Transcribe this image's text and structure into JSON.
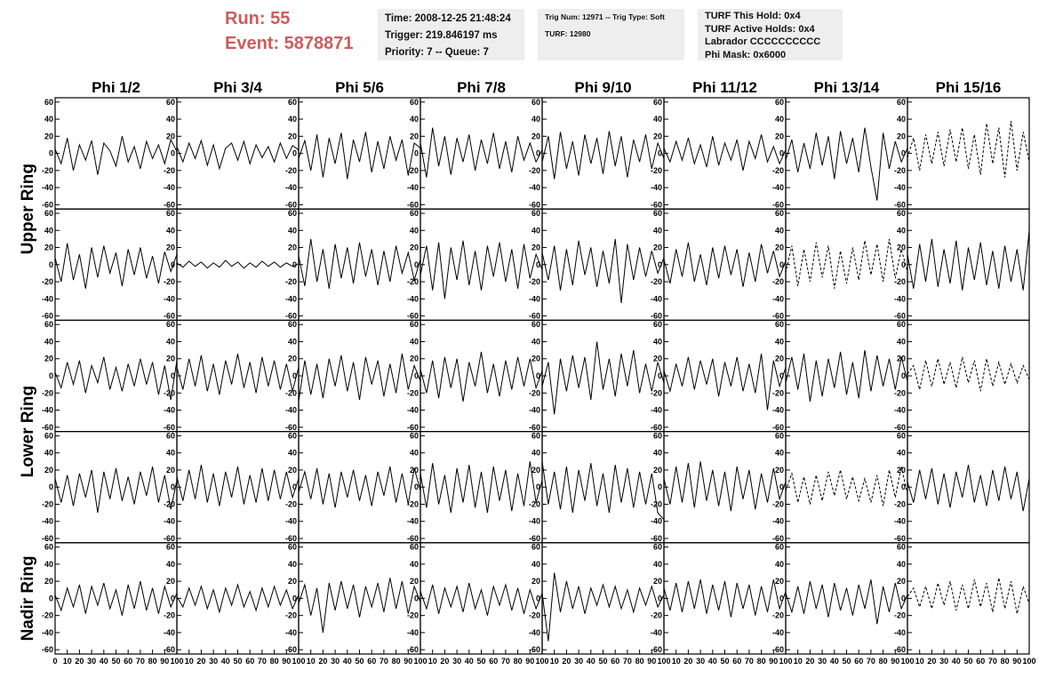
{
  "header": {
    "run": "Run:    55",
    "event": "Event: 5878871",
    "info_1": [
      "Time: 2008-12-25 21:48:24",
      "Trigger: 219.846197 ms",
      "Priority: 7 -- Queue: 7"
    ],
    "info_2": [
      "Trig Num: 12971 -- Trig Type: Soft",
      "TURF: 12980"
    ],
    "info_3": [
      "TURF This Hold: 0x4",
      "TURF Active Holds: 0x4",
      "Labrador CCCCCCCCCC",
      "Phi Mask: 0x6000"
    ]
  },
  "chart_data": {
    "type": "waveform-grid",
    "columns": [
      "Phi 1/2",
      "Phi 3/4",
      "Phi 5/6",
      "Phi 7/8",
      "Phi 9/10",
      "Phi 11/12",
      "Phi 13/14",
      "Phi 15/16"
    ],
    "row_groups": [
      "Upper Ring",
      "Lower Ring",
      "Nadir Ring"
    ],
    "xlim": [
      0,
      100
    ],
    "xticks": [
      0,
      10,
      20,
      30,
      40,
      50,
      60,
      70,
      80,
      90,
      100
    ],
    "ylim": [
      -65,
      65
    ],
    "yticks": [
      -60,
      -40,
      -20,
      0,
      20,
      40,
      60
    ],
    "x": [
      0,
      5,
      10,
      15,
      20,
      25,
      30,
      35,
      40,
      45,
      50,
      55,
      60,
      65,
      70,
      75,
      80,
      85,
      90,
      95,
      100
    ],
    "panels": [
      [
        {
          "line_style": "solid",
          "values": [
            5,
            -12,
            18,
            -20,
            10,
            -8,
            15,
            -25,
            12,
            3,
            -15,
            20,
            -10,
            8,
            -18,
            14,
            -6,
            10,
            -12,
            16,
            2
          ]
        },
        {
          "line_style": "solid",
          "values": [
            8,
            -10,
            12,
            -6,
            15,
            -14,
            10,
            -18,
            6,
            12,
            -8,
            14,
            -12,
            10,
            -5,
            8,
            -10,
            12,
            -6,
            9,
            4
          ]
        },
        {
          "line_style": "solid",
          "values": [
            -6,
            15,
            -20,
            22,
            -28,
            18,
            -12,
            24,
            -30,
            16,
            -10,
            25,
            -22,
            14,
            -18,
            20,
            -8,
            16,
            -26,
            12,
            6
          ]
        },
        {
          "line_style": "solid",
          "values": [
            12,
            -28,
            30,
            -15,
            20,
            -25,
            18,
            -10,
            22,
            -20,
            16,
            -12,
            24,
            -18,
            14,
            -22,
            20,
            -8,
            12,
            -10,
            4
          ]
        },
        {
          "line_style": "solid",
          "values": [
            -10,
            20,
            -30,
            25,
            -18,
            14,
            -26,
            22,
            -12,
            18,
            -24,
            26,
            -15,
            20,
            -28,
            16,
            -10,
            22,
            -18,
            12,
            -6
          ]
        },
        {
          "line_style": "solid",
          "values": [
            6,
            -10,
            14,
            -8,
            18,
            -12,
            10,
            -16,
            20,
            -14,
            12,
            -8,
            16,
            -20,
            14,
            -6,
            22,
            -10,
            8,
            -12,
            4
          ]
        },
        {
          "line_style": "solid",
          "values": [
            -8,
            16,
            -22,
            12,
            -18,
            24,
            -14,
            20,
            -30,
            26,
            -12,
            18,
            -22,
            30,
            -16,
            -55,
            24,
            -18,
            14,
            -10,
            6
          ]
        },
        {
          "line_style": "dashed",
          "values": [
            -5,
            18,
            -20,
            22,
            -12,
            25,
            -15,
            28,
            -10,
            30,
            -18,
            22,
            -25,
            35,
            -12,
            30,
            -28,
            38,
            -20,
            25,
            -10
          ]
        }
      ],
      [
        {
          "line_style": "solid",
          "values": [
            8,
            -20,
            25,
            -18,
            12,
            -28,
            20,
            -15,
            22,
            -10,
            14,
            -25,
            18,
            -12,
            20,
            -16,
            10,
            -22,
            15,
            -8,
            12
          ]
        },
        {
          "line_style": "solid",
          "values": [
            2,
            -3,
            4,
            -2,
            3,
            -4,
            2,
            -3,
            5,
            -2,
            3,
            -4,
            2,
            -3,
            4,
            -2,
            3,
            -3,
            2,
            -2,
            1
          ]
        },
        {
          "line_style": "solid",
          "values": [
            10,
            -25,
            30,
            -20,
            18,
            -28,
            24,
            -16,
            20,
            -22,
            26,
            -14,
            18,
            -24,
            16,
            -20,
            22,
            -10,
            14,
            -18,
            6
          ]
        },
        {
          "line_style": "solid",
          "values": [
            -12,
            22,
            -30,
            26,
            -40,
            20,
            -18,
            28,
            -24,
            16,
            -30,
            22,
            -14,
            26,
            -20,
            18,
            -28,
            24,
            -16,
            12,
            -6
          ]
        },
        {
          "line_style": "solid",
          "values": [
            14,
            -18,
            22,
            -30,
            18,
            -24,
            28,
            -12,
            20,
            -26,
            16,
            -22,
            30,
            -45,
            24,
            -18,
            20,
            -14,
            16,
            -10,
            8
          ]
        },
        {
          "line_style": "solid",
          "values": [
            6,
            -22,
            18,
            -14,
            26,
            -20,
            12,
            -24,
            20,
            -16,
            22,
            -12,
            18,
            -26,
            14,
            -20,
            24,
            -10,
            16,
            -14,
            4
          ]
        },
        {
          "line_style": "dashed",
          "values": [
            -10,
            22,
            -25,
            18,
            -20,
            26,
            -15,
            22,
            -28,
            16,
            -22,
            20,
            -18,
            28,
            -12,
            24,
            -20,
            30,
            -16,
            18,
            -8
          ]
        },
        {
          "line_style": "solid",
          "values": [
            12,
            -28,
            24,
            -20,
            30,
            -26,
            18,
            -22,
            28,
            -30,
            20,
            -18,
            26,
            -24,
            16,
            -28,
            22,
            -20,
            18,
            -30,
            40
          ]
        }
      ],
      [
        {
          "line_style": "solid",
          "values": [
            4,
            -14,
            16,
            -10,
            18,
            -20,
            12,
            -8,
            22,
            -16,
            10,
            -18,
            14,
            -12,
            20,
            -10,
            16,
            -22,
            12,
            -28,
            18
          ]
        },
        {
          "line_style": "solid",
          "values": [
            10,
            -16,
            20,
            -12,
            24,
            -18,
            14,
            -22,
            18,
            -10,
            26,
            -14,
            16,
            -20,
            22,
            -12,
            18,
            -16,
            14,
            -18,
            10
          ]
        },
        {
          "line_style": "solid",
          "values": [
            -30,
            18,
            -22,
            14,
            -26,
            20,
            -12,
            24,
            -18,
            16,
            -28,
            22,
            -10,
            18,
            -24,
            14,
            -20,
            26,
            -16,
            12,
            -6
          ]
        },
        {
          "line_style": "solid",
          "values": [
            8,
            -20,
            18,
            -26,
            22,
            -14,
            20,
            -30,
            16,
            -12,
            28,
            -20,
            14,
            -24,
            18,
            -16,
            22,
            -12,
            20,
            -14,
            6
          ]
        },
        {
          "line_style": "solid",
          "values": [
            -12,
            16,
            -45,
            20,
            -18,
            24,
            -14,
            22,
            -28,
            40,
            -16,
            20,
            -24,
            26,
            -12,
            30,
            -20,
            14,
            -18,
            16,
            -8
          ]
        },
        {
          "line_style": "solid",
          "values": [
            6,
            -18,
            14,
            -12,
            22,
            -16,
            18,
            -10,
            20,
            -24,
            16,
            -12,
            22,
            -18,
            14,
            -20,
            26,
            -40,
            18,
            -12,
            10
          ]
        },
        {
          "line_style": "solid",
          "values": [
            -8,
            22,
            -16,
            26,
            -30,
            18,
            -24,
            20,
            -14,
            28,
            -22,
            16,
            -26,
            30,
            -18,
            24,
            -12,
            20,
            -16,
            22,
            -6
          ]
        },
        {
          "line_style": "dashed",
          "values": [
            2,
            12,
            -16,
            18,
            -12,
            20,
            -10,
            16,
            -14,
            22,
            -8,
            18,
            -18,
            20,
            -12,
            16,
            -10,
            14,
            -8,
            12,
            -4
          ]
        }
      ],
      [
        {
          "line_style": "solid",
          "values": [
            10,
            -18,
            14,
            -22,
            16,
            -12,
            20,
            -30,
            18,
            -14,
            22,
            -16,
            12,
            -20,
            18,
            -10,
            24,
            -18,
            14,
            -26,
            8
          ]
        },
        {
          "line_style": "solid",
          "values": [
            12,
            -16,
            20,
            -14,
            26,
            -18,
            16,
            -22,
            18,
            -12,
            24,
            -20,
            14,
            -18,
            22,
            -16,
            20,
            -14,
            18,
            -12,
            10
          ]
        },
        {
          "line_style": "solid",
          "values": [
            -6,
            18,
            -14,
            22,
            -20,
            16,
            -24,
            18,
            -12,
            20,
            -16,
            14,
            -22,
            18,
            -10,
            24,
            -18,
            16,
            -20,
            22,
            -4
          ]
        },
        {
          "line_style": "solid",
          "values": [
            16,
            -24,
            28,
            -20,
            14,
            -30,
            22,
            -18,
            26,
            -24,
            18,
            -30,
            24,
            -16,
            20,
            -28,
            16,
            -22,
            30,
            -18,
            8
          ]
        },
        {
          "line_style": "solid",
          "values": [
            30,
            -20,
            18,
            -26,
            24,
            -30,
            20,
            -16,
            28,
            -22,
            16,
            -30,
            26,
            -18,
            22,
            -24,
            18,
            -20,
            16,
            -30,
            -38
          ]
        },
        {
          "line_style": "solid",
          "values": [
            10,
            -20,
            24,
            -18,
            28,
            -24,
            30,
            -16,
            20,
            -22,
            18,
            -28,
            24,
            -14,
            20,
            -26,
            16,
            -18,
            22,
            -14,
            6
          ]
        },
        {
          "line_style": "dashed",
          "values": [
            -4,
            16,
            -18,
            12,
            -20,
            14,
            -16,
            18,
            -10,
            20,
            -14,
            12,
            -16,
            10,
            -18,
            14,
            -22,
            20,
            -12,
            24,
            -8
          ]
        },
        {
          "line_style": "solid",
          "values": [
            6,
            -18,
            20,
            -14,
            22,
            -20,
            16,
            -24,
            18,
            -12,
            26,
            -18,
            14,
            -22,
            20,
            -16,
            24,
            -14,
            18,
            -28,
            10
          ]
        }
      ],
      [
        {
          "line_style": "solid",
          "values": [
            4,
            -14,
            12,
            -10,
            16,
            -18,
            14,
            -8,
            18,
            -12,
            10,
            -20,
            16,
            -12,
            20,
            -14,
            12,
            -18,
            14,
            -10,
            6
          ]
        },
        {
          "line_style": "solid",
          "values": [
            2,
            -10,
            12,
            -8,
            14,
            -12,
            10,
            -16,
            12,
            -8,
            16,
            -10,
            8,
            -14,
            12,
            -10,
            14,
            -8,
            10,
            -12,
            4
          ]
        },
        {
          "line_style": "solid",
          "values": [
            -6,
            16,
            -20,
            12,
            -40,
            18,
            -14,
            20,
            -12,
            16,
            -22,
            14,
            -10,
            18,
            -16,
            24,
            -12,
            20,
            -18,
            14,
            -4
          ]
        },
        {
          "line_style": "solid",
          "values": [
            8,
            -12,
            16,
            -18,
            12,
            -10,
            14,
            -16,
            18,
            -12,
            10,
            -20,
            14,
            -8,
            16,
            -14,
            12,
            -18,
            10,
            -12,
            6
          ]
        },
        {
          "line_style": "solid",
          "values": [
            6,
            -50,
            30,
            -16,
            20,
            -12,
            14,
            -18,
            12,
            -8,
            16,
            -10,
            14,
            -12,
            10,
            -16,
            12,
            -8,
            14,
            -10,
            4
          ]
        },
        {
          "line_style": "solid",
          "values": [
            12,
            -14,
            18,
            -16,
            20,
            -12,
            22,
            -18,
            16,
            -14,
            20,
            -22,
            18,
            -12,
            16,
            -20,
            14,
            -16,
            22,
            -12,
            8
          ]
        },
        {
          "line_style": "solid",
          "values": [
            6,
            -16,
            14,
            -18,
            20,
            -12,
            16,
            -22,
            18,
            -14,
            12,
            -20,
            16,
            -12,
            22,
            -30,
            14,
            -16,
            18,
            -12,
            4
          ]
        },
        {
          "line_style": "dashed",
          "values": [
            2,
            12,
            -10,
            14,
            -12,
            18,
            -8,
            20,
            -14,
            16,
            -12,
            22,
            -10,
            18,
            -16,
            24,
            -12,
            20,
            -18,
            14,
            -6
          ]
        }
      ]
    ]
  }
}
